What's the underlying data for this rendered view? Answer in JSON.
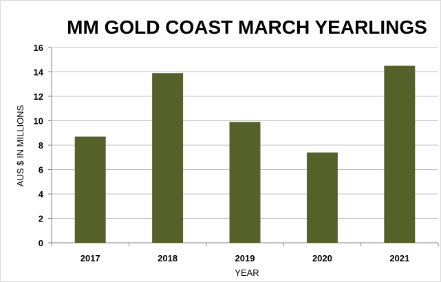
{
  "chart_data": {
    "type": "bar",
    "title": "MM GOLD COAST MARCH YEARLINGS",
    "xlabel": "YEAR",
    "ylabel": "AUS $ IN MILLIONS",
    "categories": [
      "2017",
      "2018",
      "2019",
      "2020",
      "2021"
    ],
    "values": [
      8.7,
      13.9,
      9.9,
      7.4,
      14.5
    ],
    "ylim": [
      0,
      16
    ],
    "yticks": [
      0,
      2,
      4,
      6,
      8,
      10,
      12,
      14,
      16
    ],
    "grid": true,
    "legend": "none",
    "bar_color": "#556128"
  }
}
